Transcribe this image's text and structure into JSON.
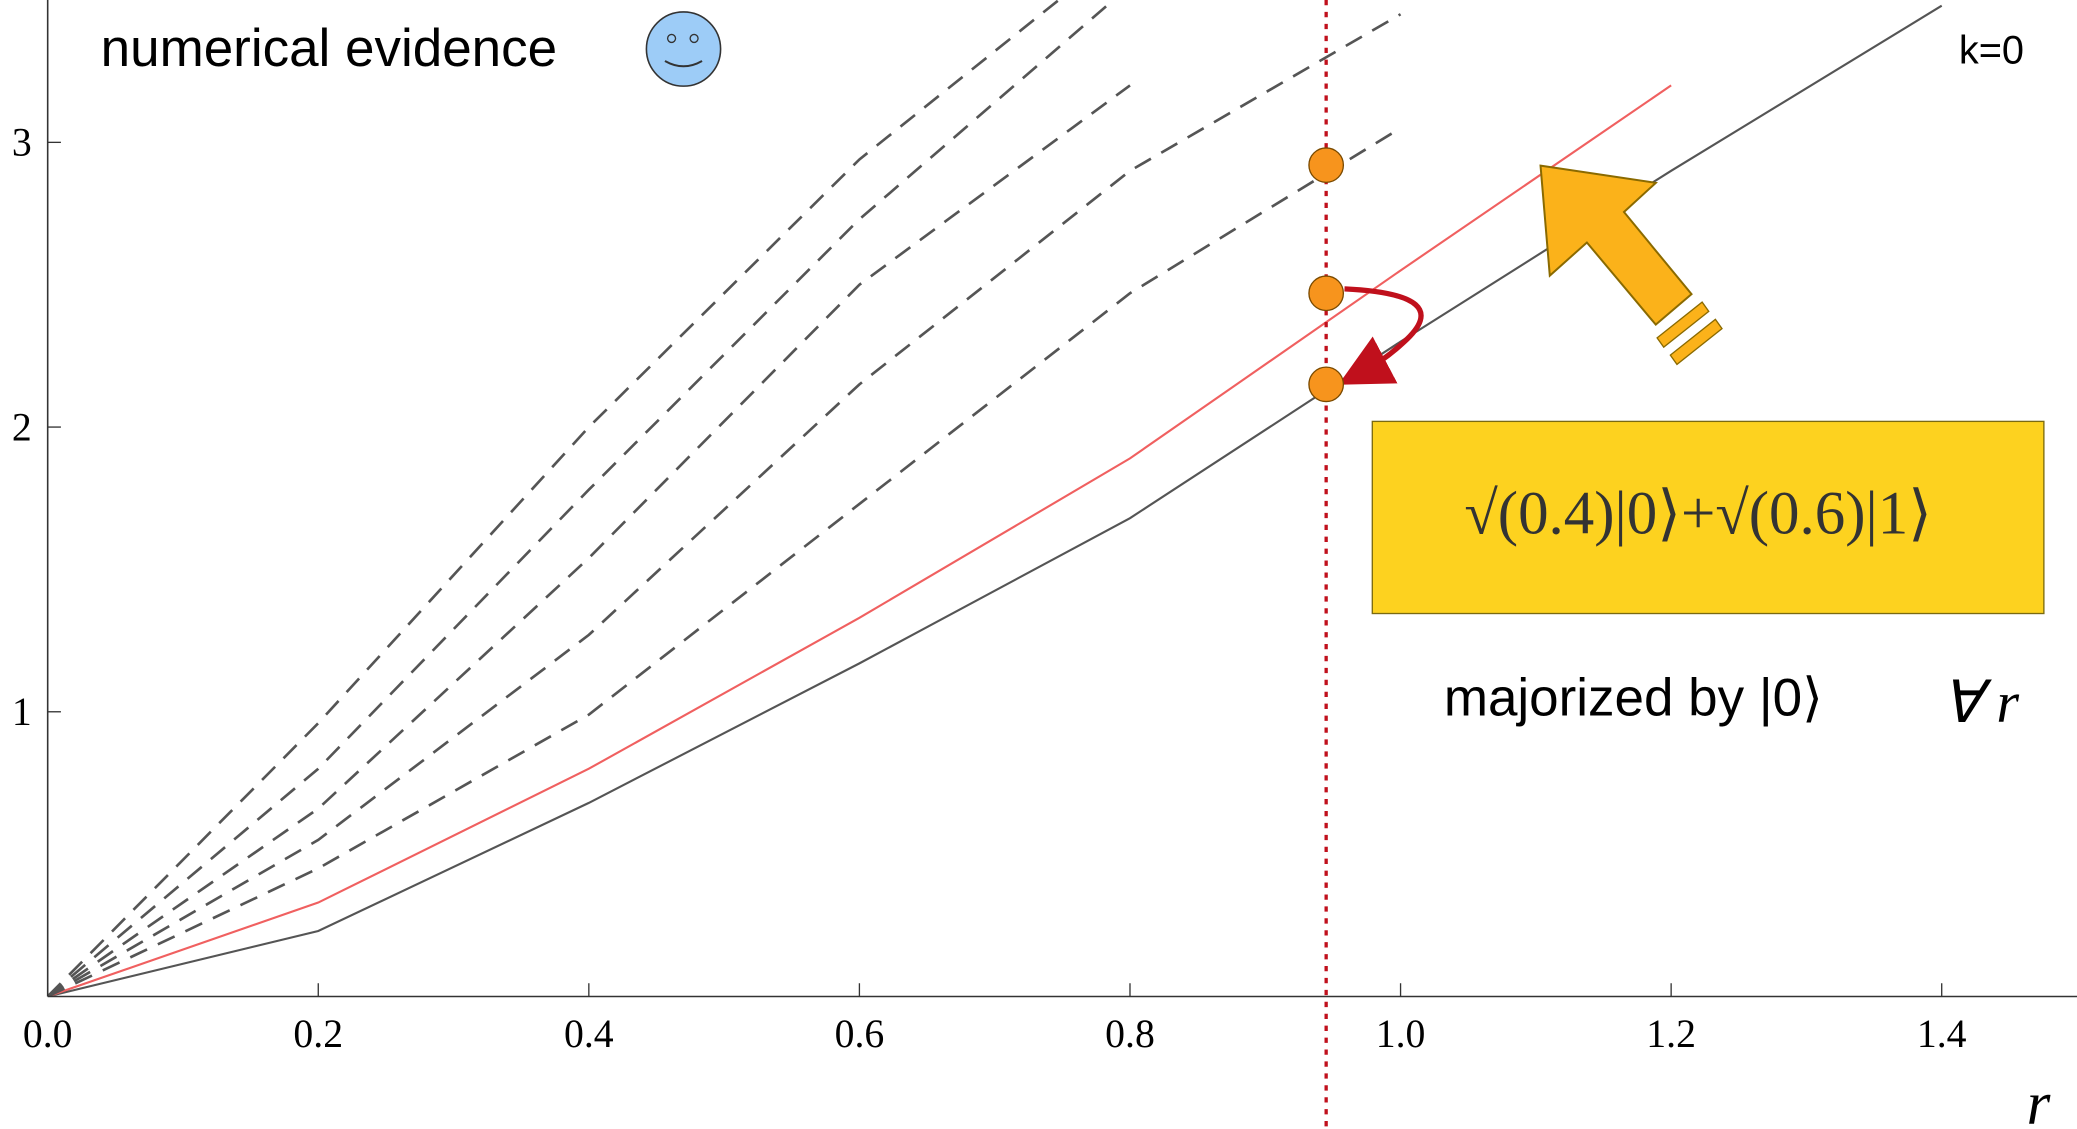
{
  "chart_data": {
    "type": "line",
    "x_label": "r",
    "xlim": [
      0,
      1.5
    ],
    "ylim": [
      0,
      3.5
    ],
    "xticks": [
      {
        "value": 0,
        "label": "0.0"
      },
      0.2,
      0.4,
      0.6,
      0.8,
      {
        "value": 1,
        "label": "1.0"
      },
      1.2,
      1.4
    ],
    "yticks": [
      1,
      2,
      3
    ],
    "x": [
      0,
      0.2,
      0.4,
      0.6,
      0.8,
      1.0,
      1.2,
      1.4
    ],
    "series": [
      {
        "name": "k=0",
        "color": "#555555",
        "dash": false,
        "values": [
          0,
          0.23,
          0.68,
          1.17,
          1.68,
          2.3,
          2.9,
          3.48
        ]
      },
      {
        "color": "#f06060",
        "dash": false,
        "values": [
          0,
          0.33,
          0.8,
          1.33,
          1.89,
          2.55,
          3.2,
          null
        ]
      },
      {
        "color": "#555555",
        "dash": true,
        "values": [
          0,
          0.45,
          0.99,
          1.73,
          2.47,
          3.05,
          null,
          null
        ]
      },
      {
        "color": "#555555",
        "dash": true,
        "values": [
          0,
          0.55,
          1.27,
          2.15,
          2.9,
          3.45,
          null,
          null
        ]
      },
      {
        "color": "#555555",
        "dash": true,
        "values": [
          0,
          0.66,
          1.54,
          2.5,
          3.2,
          null,
          null,
          null
        ]
      },
      {
        "color": "#555555",
        "dash": true,
        "values": [
          0,
          0.8,
          1.78,
          2.73,
          3.55,
          null,
          null,
          null
        ]
      },
      {
        "color": "#555555",
        "dash": true,
        "values": [
          0,
          0.96,
          2.0,
          2.94,
          3.7,
          null,
          null,
          null
        ]
      }
    ],
    "highlight": {
      "x": 0.945,
      "values": [
        2.92,
        2.47,
        2.15
      ],
      "color": "#f7941d"
    },
    "annotations": {
      "evidence": "numerical evidence",
      "state": "√(0.4)|0⟩+√(0.6)|1⟩",
      "majorized": "majorized by |0⟩",
      "forall": "∀ r"
    }
  }
}
